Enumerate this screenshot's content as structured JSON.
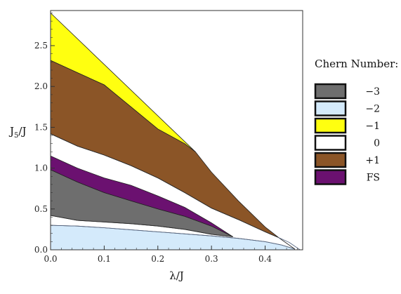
{
  "chart_data": {
    "type": "area",
    "xlabel": "λ/J",
    "ylabel_main": "J",
    "ylabel_sub": "5",
    "ylabel_tail": "/J",
    "xlim": [
      0.0,
      0.47
    ],
    "ylim": [
      0.0,
      2.93
    ],
    "xticks": [
      0.0,
      0.1,
      0.2,
      0.3,
      0.4
    ],
    "xtick_labels": [
      "0.0",
      "0.1",
      "0.2",
      "0.3",
      "0.4"
    ],
    "yticks": [
      0.0,
      0.5,
      1.0,
      1.5,
      2.0,
      2.5
    ],
    "ytick_labels": [
      "0.0",
      "0.5",
      "1.0",
      "1.5",
      "2.0",
      "2.5"
    ],
    "grid": false,
    "legend": {
      "title": "Chern Number:",
      "placement": "right",
      "entries": [
        {
          "label": "−3",
          "color": "#6e6e6e"
        },
        {
          "label": "−2",
          "color": "#d4eafb"
        },
        {
          "label": "−1",
          "color": "#ffff10"
        },
        {
          "label": "0",
          "color": "#ffffff"
        },
        {
          "label": "+1",
          "color": "#8b5527"
        },
        {
          "label": "FS",
          "color": "#6b1170"
        }
      ]
    },
    "regions": [
      {
        "chern": "−2",
        "color": "#d4eafb",
        "upper": [
          [
            0.0,
            0.3
          ],
          [
            0.05,
            0.29
          ],
          [
            0.1,
            0.27
          ],
          [
            0.15,
            0.245
          ],
          [
            0.2,
            0.22
          ],
          [
            0.25,
            0.195
          ],
          [
            0.3,
            0.17
          ],
          [
            0.35,
            0.14
          ],
          [
            0.4,
            0.1
          ],
          [
            0.43,
            0.06
          ],
          [
            0.455,
            0.01
          ]
        ],
        "lower": [
          [
            0.455,
            0.0
          ],
          [
            0.0,
            0.0
          ]
        ]
      },
      {
        "chern": "−3",
        "color": "#6e6e6e",
        "upper": [
          [
            0.0,
            0.98
          ],
          [
            0.05,
            0.83
          ],
          [
            0.1,
            0.7
          ],
          [
            0.15,
            0.6
          ],
          [
            0.2,
            0.5
          ],
          [
            0.25,
            0.41
          ],
          [
            0.3,
            0.29
          ],
          [
            0.34,
            0.16
          ]
        ],
        "lower": [
          [
            0.34,
            0.16
          ],
          [
            0.3,
            0.19
          ],
          [
            0.25,
            0.25
          ],
          [
            0.2,
            0.29
          ],
          [
            0.15,
            0.32
          ],
          [
            0.1,
            0.34
          ],
          [
            0.05,
            0.36
          ],
          [
            0.0,
            0.42
          ]
        ]
      },
      {
        "chern": "FS",
        "color": "#6b1170",
        "upper": [
          [
            0.0,
            1.15
          ],
          [
            0.05,
            1.0
          ],
          [
            0.1,
            0.88
          ],
          [
            0.15,
            0.79
          ],
          [
            0.2,
            0.66
          ],
          [
            0.25,
            0.52
          ],
          [
            0.3,
            0.33
          ],
          [
            0.34,
            0.16
          ]
        ],
        "lower": [
          [
            0.34,
            0.16
          ],
          [
            0.3,
            0.29
          ],
          [
            0.25,
            0.41
          ],
          [
            0.2,
            0.5
          ],
          [
            0.15,
            0.6
          ],
          [
            0.1,
            0.7
          ],
          [
            0.05,
            0.83
          ],
          [
            0.0,
            0.98
          ]
        ]
      },
      {
        "chern": "+1",
        "color": "#8b5527",
        "upper": [
          [
            0.0,
            2.32
          ],
          [
            0.05,
            2.17
          ],
          [
            0.1,
            2.02
          ],
          [
            0.15,
            1.75
          ],
          [
            0.2,
            1.48
          ],
          [
            0.25,
            1.3
          ],
          [
            0.27,
            1.2
          ],
          [
            0.3,
            0.95
          ],
          [
            0.35,
            0.6
          ],
          [
            0.4,
            0.28
          ],
          [
            0.425,
            0.15
          ]
        ],
        "lower": [
          [
            0.425,
            0.15
          ],
          [
            0.4,
            0.22
          ],
          [
            0.35,
            0.37
          ],
          [
            0.3,
            0.51
          ],
          [
            0.25,
            0.7
          ],
          [
            0.2,
            0.88
          ],
          [
            0.15,
            1.03
          ],
          [
            0.1,
            1.16
          ],
          [
            0.05,
            1.27
          ],
          [
            0.0,
            1.42
          ]
        ]
      },
      {
        "chern": "−1",
        "color": "#ffff10",
        "upper": [
          [
            0.0,
            2.9
          ],
          [
            0.27,
            1.2
          ]
        ],
        "lower": [
          [
            0.27,
            1.2
          ],
          [
            0.25,
            1.3
          ],
          [
            0.2,
            1.48
          ],
          [
            0.15,
            1.75
          ],
          [
            0.1,
            2.02
          ],
          [
            0.05,
            2.17
          ],
          [
            0.0,
            2.32
          ]
        ]
      }
    ],
    "boundaries": [
      {
        "points": [
          [
            0.0,
            0.3
          ],
          [
            0.05,
            0.29
          ],
          [
            0.1,
            0.27
          ],
          [
            0.15,
            0.245
          ],
          [
            0.2,
            0.22
          ],
          [
            0.25,
            0.195
          ],
          [
            0.3,
            0.17
          ],
          [
            0.35,
            0.14
          ],
          [
            0.4,
            0.1
          ],
          [
            0.43,
            0.06
          ],
          [
            0.455,
            0.01
          ]
        ],
        "color": "#5a6a86"
      },
      {
        "points": [
          [
            0.0,
            0.42
          ],
          [
            0.05,
            0.36
          ],
          [
            0.1,
            0.34
          ],
          [
            0.15,
            0.32
          ],
          [
            0.2,
            0.29
          ],
          [
            0.25,
            0.25
          ],
          [
            0.3,
            0.19
          ],
          [
            0.34,
            0.16
          ]
        ],
        "color": "#2a2a2a"
      },
      {
        "points": [
          [
            0.0,
            1.42
          ],
          [
            0.05,
            1.27
          ],
          [
            0.1,
            1.16
          ],
          [
            0.15,
            1.03
          ],
          [
            0.2,
            0.88
          ],
          [
            0.25,
            0.7
          ],
          [
            0.3,
            0.51
          ],
          [
            0.35,
            0.37
          ],
          [
            0.4,
            0.22
          ],
          [
            0.425,
            0.15
          ],
          [
            0.455,
            0.01
          ]
        ],
        "color": "#2a2a2a"
      },
      {
        "points": [
          [
            0.425,
            0.15
          ],
          [
            0.445,
            0.09
          ],
          [
            0.465,
            0.0
          ]
        ],
        "color": "#5a6a86"
      }
    ]
  }
}
